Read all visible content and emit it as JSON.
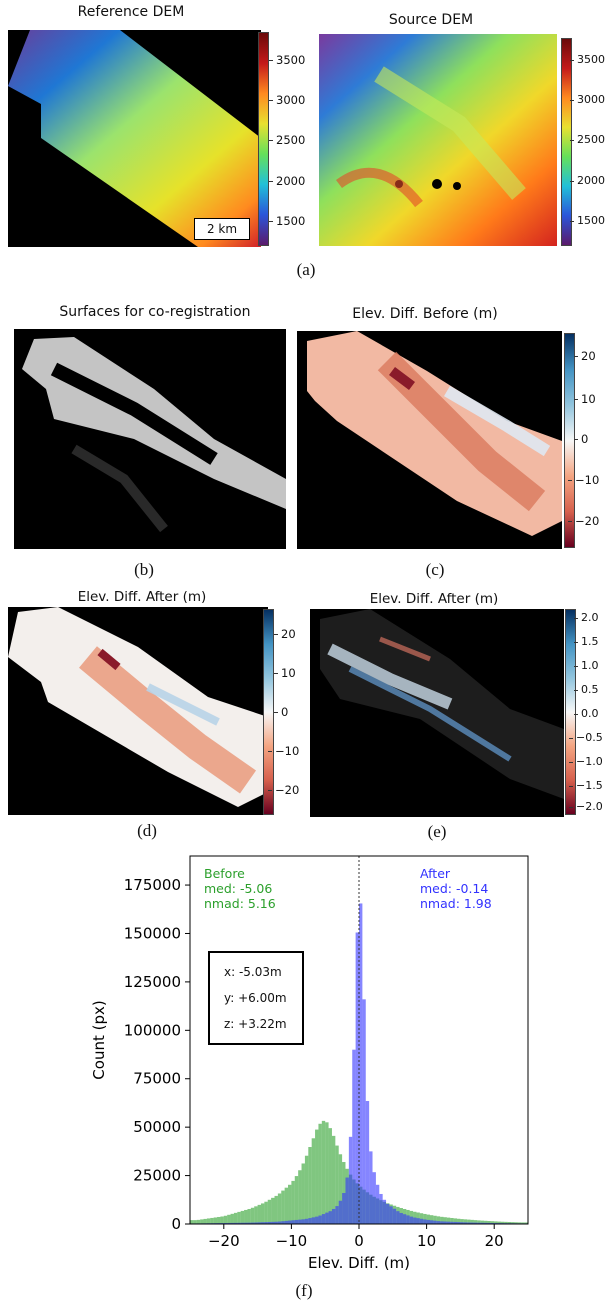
{
  "panel_a": {
    "left_title": "Reference DEM",
    "right_title": "Source DEM",
    "scale_bar": "2 km",
    "colorbar_ticks": [
      "3500",
      "3000",
      "2500",
      "2000",
      "1500"
    ],
    "caption": "(a)"
  },
  "panel_b": {
    "title": "Surfaces for co-registration",
    "caption": "(b)"
  },
  "panel_c": {
    "title": "Elev. Diff. Before (m)",
    "colorbar_ticks": [
      "20",
      "10",
      "0",
      "−10",
      "−20"
    ],
    "caption": "(c)"
  },
  "panel_d": {
    "title": "Elev. Diff. After (m)",
    "colorbar_ticks": [
      "20",
      "10",
      "0",
      "−10",
      "−20"
    ],
    "caption": "(d)"
  },
  "panel_e": {
    "title": "Elev. Diff. After (m)",
    "colorbar_ticks": [
      "2.0",
      "1.5",
      "1.0",
      "0.5",
      "0.0",
      "−0.5",
      "−1.0",
      "−1.5",
      "−2.0"
    ],
    "caption": "(e)"
  },
  "panel_f": {
    "caption": "(f)",
    "before": {
      "label": "Before",
      "med": "med: -5.06",
      "nmad": "nmad: 5.16",
      "color": "#2ca02c"
    },
    "after": {
      "label": "After",
      "med": "med: -0.14",
      "nmad": "nmad: 1.98",
      "color": "#3333ff"
    },
    "shift": {
      "x": "x: -5.03m",
      "y": "y: +6.00m",
      "z": "z: +3.22m"
    }
  },
  "chart_data": {
    "type": "bar",
    "xlabel": "Elev. Diff. (m)",
    "ylabel": "Count (px)",
    "xlim": [
      -25,
      25
    ],
    "ylim": [
      0,
      190000
    ],
    "xticks": [
      -20,
      -10,
      0,
      10,
      20
    ],
    "yticks": [
      0,
      25000,
      50000,
      75000,
      100000,
      125000,
      150000,
      175000
    ],
    "vline": 0,
    "series": [
      {
        "name": "Before",
        "color": "#2ca02c",
        "x": [
          -24,
          -22,
          -20,
          -18,
          -16,
          -14,
          -12,
          -10,
          -9,
          -8,
          -7,
          -6,
          -5,
          -4,
          -3,
          -2,
          -1,
          0,
          1,
          2,
          4,
          6,
          8,
          10,
          12,
          15,
          18,
          21,
          24
        ],
        "values": [
          2000,
          3000,
          4000,
          6000,
          8000,
          11000,
          15000,
          21000,
          26000,
          33000,
          42000,
          51000,
          54000,
          48000,
          38000,
          30000,
          24000,
          20000,
          17000,
          14500,
          11000,
          8500,
          6500,
          5000,
          3800,
          2600,
          1800,
          1200,
          800
        ]
      },
      {
        "name": "After",
        "color": "#3333ff",
        "x": [
          -24,
          -20,
          -16,
          -12,
          -8,
          -6,
          -4,
          -3,
          -2,
          -1.5,
          -1,
          -0.5,
          0,
          0.5,
          1,
          1.5,
          2,
          3,
          4,
          6,
          8,
          10,
          12,
          16,
          20,
          24
        ],
        "values": [
          300,
          500,
          700,
          1200,
          2500,
          4000,
          7000,
          10000,
          18000,
          30000,
          60000,
          120000,
          181000,
          150000,
          82000,
          45000,
          30000,
          17000,
          11000,
          6000,
          3500,
          2200,
          1400,
          800,
          500,
          300
        ]
      }
    ]
  }
}
